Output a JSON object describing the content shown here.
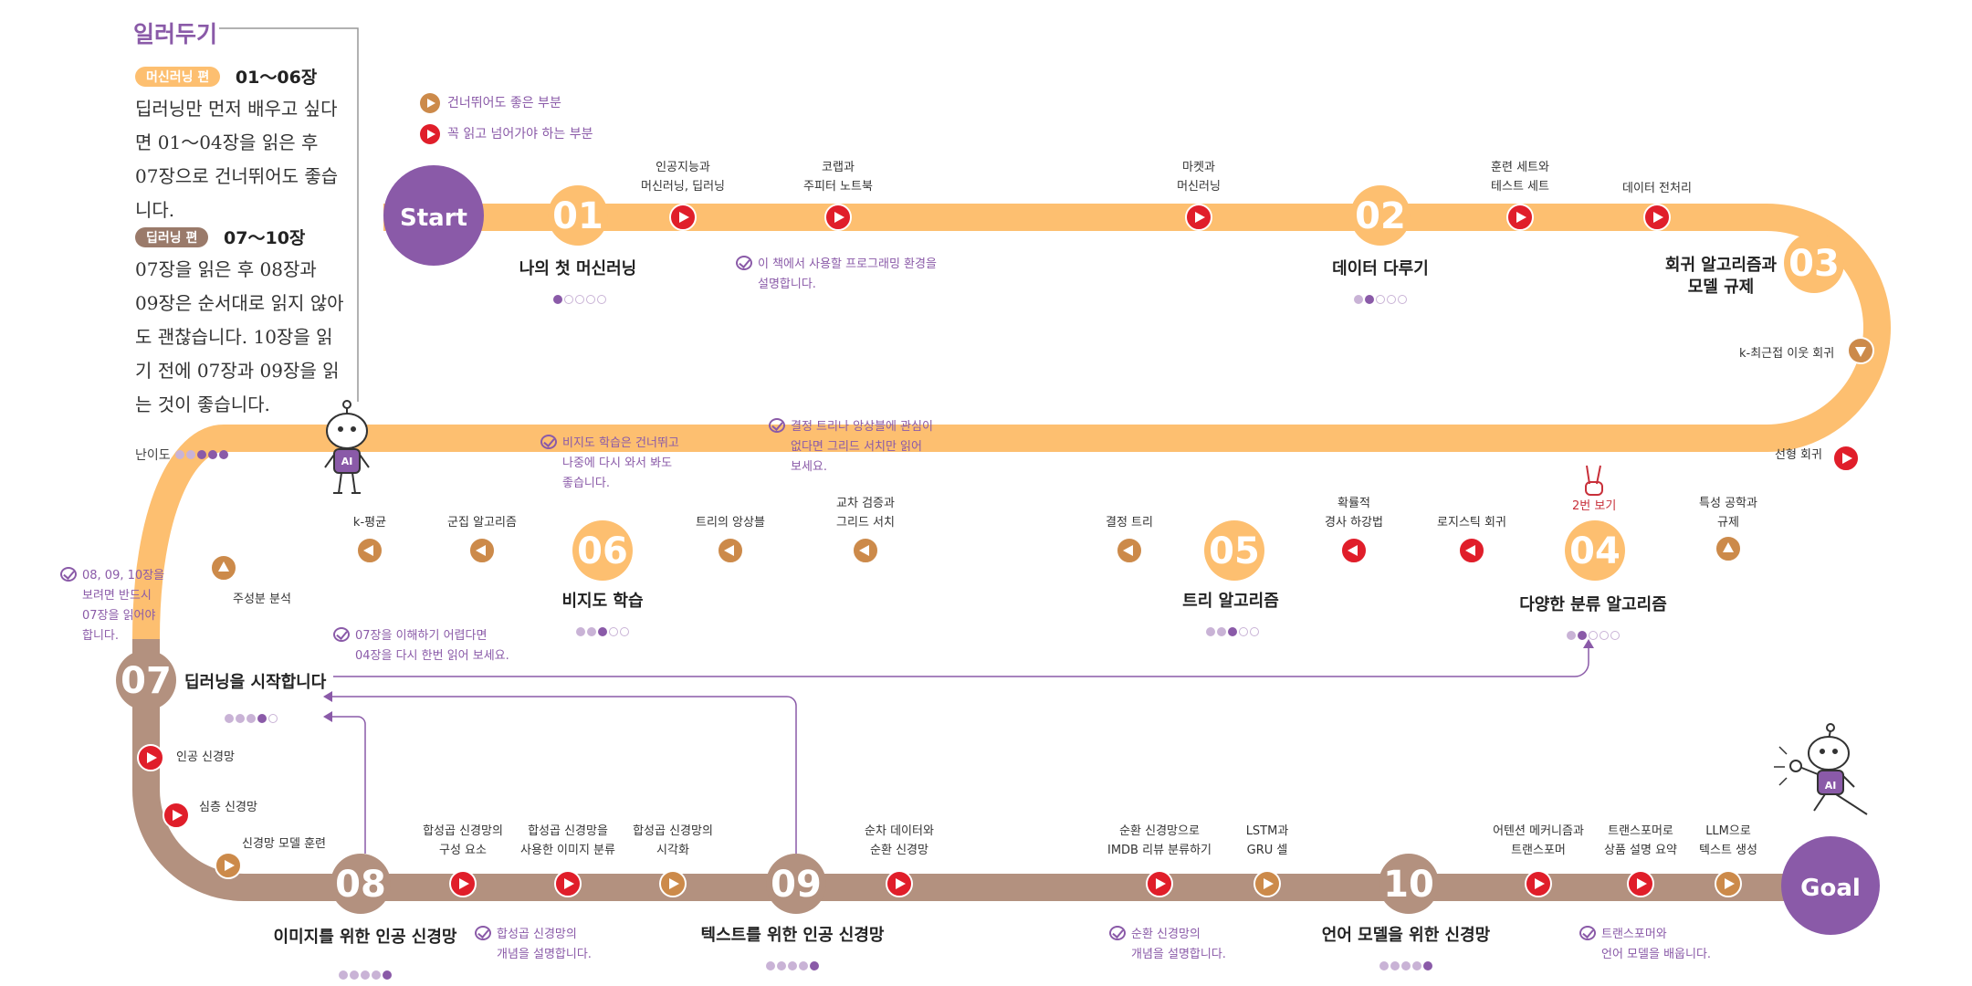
{
  "notes": {
    "title": "일러두기",
    "ml": {
      "tag": "머신러닝 편",
      "range": "01～06장",
      "text": "딥러닝만 먼저 배우고 싶다면 01～04장을 읽은 후 07장으로 건너뛰어도 좋습니다."
    },
    "dl": {
      "tag": "딥러닝 편",
      "range": "07～10장",
      "text": "07장을 읽은 후 08장과 09장은 순서대로 읽지 않아도 괜찮습니다. 10장을 읽기 전에 07장과 09장을 읽는 것이 좋습니다."
    },
    "difficulty_label": "난이도"
  },
  "legend": {
    "skippable": "건너뛰어도 좋은 부분",
    "must_read": "꼭 읽고 넘어가야 하는 부분"
  },
  "colors": {
    "ml_track": "#fdbf70",
    "dl_track": "#b3917f",
    "purple": "#8a5aa8",
    "must_read": "#e01e2a",
    "skippable": "#cc8a4a"
  },
  "start_label": "Start",
  "goal_label": "Goal",
  "chapters": [
    {
      "num": "01",
      "title": "나의 첫 머신러닝",
      "difficulty": 1
    },
    {
      "num": "02",
      "title": "데이터 다루기",
      "difficulty": 2
    },
    {
      "num": "03",
      "title": "회귀 알고리즘과\n모델 규제",
      "difficulty": null
    },
    {
      "num": "04",
      "title": "다양한 분류 알고리즘",
      "difficulty": 2
    },
    {
      "num": "05",
      "title": "트리 알고리즘",
      "difficulty": 3
    },
    {
      "num": "06",
      "title": "비지도 학습",
      "difficulty": 3
    },
    {
      "num": "07",
      "title": "딥러닝을 시작합니다",
      "difficulty": 4
    },
    {
      "num": "08",
      "title": "이미지를 위한 인공 신경망",
      "difficulty": 5
    },
    {
      "num": "09",
      "title": "텍스트를 위한 인공 신경망",
      "difficulty": 5
    },
    {
      "num": "10",
      "title": "언어 모델을 위한 신경망",
      "difficulty": 5
    }
  ],
  "topics": {
    "t1": "인공지능과\n머신러닝, 딥러닝",
    "t2": "코랩과\n주피터 노트북",
    "t3": "마켓과\n머신러닝",
    "t4": "훈련 세트와\n테스트 세트",
    "t5": "데이터 전처리",
    "t6": "k-최근접 이웃 회귀",
    "t7": "선형 회귀",
    "t8": "특성 공학과\n규제",
    "t9": "로지스틱 회귀",
    "t10": "확률적\n경사 하강법",
    "t11": "결정 트리",
    "t12": "교차 검증과\n그리드 서치",
    "t13": "트리의 앙상블",
    "t14": "군집 알고리즘",
    "t15": "k-평균",
    "t16": "주성분 분석",
    "t17": "인공 신경망",
    "t18": "심층 신경망",
    "t19": "신경망 모델 훈련",
    "t20": "합성곱 신경망의\n구성 요소",
    "t21": "합성곱 신경망을\n사용한 이미지 분류",
    "t22": "합성곱 신경망의\n시각화",
    "t23": "순차 데이터와\n순환 신경망",
    "t24": "순환 신경망으로\nIMDB 리뷰 분류하기",
    "t25": "LSTM과\nGRU 셀",
    "t26": "어텐션 메커니즘과\n트랜스포머",
    "t27": "트랜스포머로\n상품 설명 요약",
    "t28": "LLM으로\n텍스트 생성"
  },
  "callouts": {
    "c1": "이 책에서 사용할 프로그래밍 환경을\n설명합니다.",
    "c2": "비지도 학습은 건너뛰고\n나중에 다시 와서 봐도\n좋습니다.",
    "c3": "결정 트리나 앙상블에 관심이\n없다면 그리드 서치만 읽어\n보세요.",
    "c4": "08, 09, 10장을\n보려면 반드시\n07장을 읽어야\n합니다.",
    "c5": "07장을 이해하기 어렵다면\n04장을 다시 한번 읽어 보세요.",
    "c6": "합성곱 신경망의\n개념을 설명합니다.",
    "c7": "순환 신경망의\n개념을  설명합니다.",
    "c8": "트랜스포머와\n언어 모델을 배웁니다."
  },
  "twice_label": "2번 보기",
  "mascot_badge": "AI"
}
